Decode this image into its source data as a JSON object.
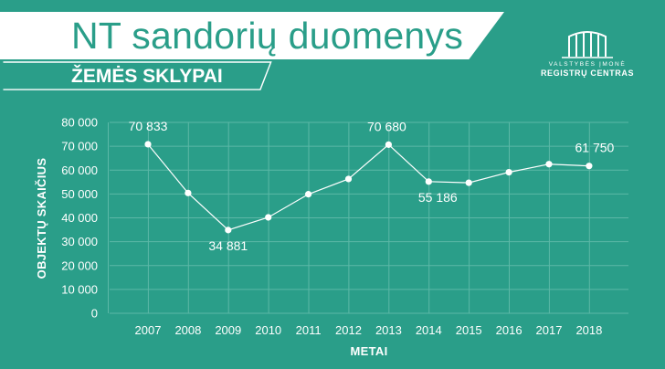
{
  "header": {
    "title": "NT sandorių duomenys",
    "subtitle": "ŽEMĖS SKLYPAI"
  },
  "logo": {
    "line1": "VALSTYBĖS ĮMONĖ",
    "line2": "REGISTRŲ CENTRAS"
  },
  "colors": {
    "background": "#2a9e89",
    "foreground": "#ffffff",
    "grid": "#5cb8a7"
  },
  "chart_data": {
    "type": "line",
    "xlabel": "METAI",
    "ylabel": "OBJEKTŲ SKAIČIUS",
    "x": [
      "2007",
      "2008",
      "2009",
      "2010",
      "2011",
      "2012",
      "2013",
      "2014",
      "2015",
      "2016",
      "2017",
      "2018"
    ],
    "series": [
      {
        "values": [
          70833,
          50400,
          34881,
          40200,
          49900,
          56300,
          70680,
          55186,
          54700,
          59100,
          62500,
          61750
        ]
      }
    ],
    "data_labels": [
      {
        "index": 0,
        "text": "70 833"
      },
      {
        "index": 2,
        "text": "34 881"
      },
      {
        "index": 6,
        "text": "70 680"
      },
      {
        "index": 7,
        "text": "55 186"
      },
      {
        "index": 11,
        "text": "61 750"
      }
    ],
    "ylim": [
      0,
      80000
    ],
    "yticks": [
      0,
      10000,
      20000,
      30000,
      40000,
      50000,
      60000,
      70000,
      80000
    ],
    "ytick_labels": [
      "0",
      "10 000",
      "20 000",
      "30 000",
      "40 000",
      "50 000",
      "60 000",
      "70 000",
      "80 000"
    ],
    "grid": true,
    "legend": "none"
  }
}
